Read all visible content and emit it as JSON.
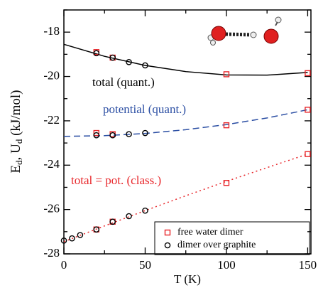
{
  "chart_data": {
    "type": "scatter",
    "xlabel": "T (K)",
    "ylabel_parts": [
      "E",
      "d",
      ", U",
      "d",
      " (kJ/mol)"
    ],
    "xlim": [
      0,
      152
    ],
    "ylim": [
      -28,
      -17
    ],
    "xticks": [
      0,
      50,
      100,
      150
    ],
    "yticks": [
      -28,
      -26,
      -24,
      -22,
      -20,
      -18
    ],
    "xminor": [
      25,
      75,
      125
    ],
    "yminor": [
      -27,
      -25,
      -23,
      -21,
      -19,
      -17
    ],
    "annotations": [
      {
        "text": "total (quant.)",
        "color": "#000000"
      },
      {
        "text": "potential (quant.)",
        "color": "#2b4ea3"
      },
      {
        "text": "total = pot. (class.)",
        "color": "#e8262a"
      }
    ],
    "series": [
      {
        "name": "free water dimer",
        "color": "#e8262a",
        "marker": "square",
        "x": [
          20,
          30,
          100,
          150,
          20,
          30,
          100,
          150,
          20,
          30,
          100,
          150
        ],
        "values": [
          -18.9,
          -19.15,
          -19.9,
          -19.85,
          -22.55,
          -22.6,
          -22.2,
          -21.5,
          -26.9,
          -26.55,
          -24.8,
          -23.5
        ]
      },
      {
        "name": "dimer over graphite",
        "color": "#000000",
        "marker": "circle",
        "x": [
          20,
          30,
          40,
          50,
          20,
          30,
          40,
          50,
          0,
          5,
          10,
          20,
          30,
          40,
          50
        ],
        "values": [
          -18.95,
          -19.15,
          -19.35,
          -19.5,
          -22.65,
          -22.65,
          -22.6,
          -22.55,
          -27.4,
          -27.3,
          -27.15,
          -26.9,
          -26.55,
          -26.3,
          -26.05
        ]
      }
    ],
    "fits": [
      {
        "color": "#000000",
        "dash": "solid",
        "x": [
          0,
          25,
          50,
          75,
          100,
          125,
          150
        ],
        "values": [
          -18.55,
          -19.09,
          -19.5,
          -19.78,
          -19.93,
          -19.94,
          -19.82
        ]
      },
      {
        "color": "#2b4ea3",
        "dash": "dashed",
        "x": [
          0,
          25,
          50,
          75,
          100,
          125,
          150
        ],
        "values": [
          -22.7,
          -22.67,
          -22.57,
          -22.4,
          -22.17,
          -21.87,
          -21.5
        ]
      },
      {
        "color": "#e8262a",
        "dash": "dotted",
        "x": [
          0,
          25,
          50,
          75,
          100,
          125,
          150
        ],
        "values": [
          -27.45,
          -26.74,
          -26.05,
          -25.38,
          -24.73,
          -24.11,
          -23.5
        ]
      }
    ]
  }
}
